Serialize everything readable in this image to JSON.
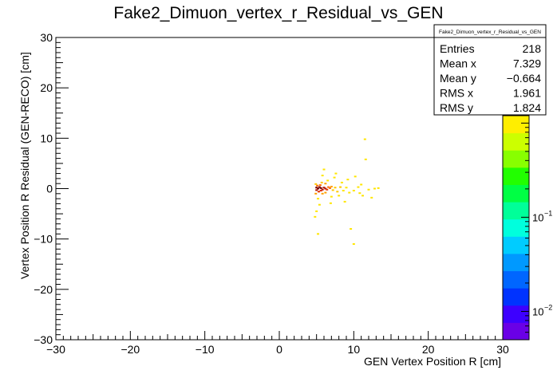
{
  "chart_data": {
    "type": "heatmap",
    "title": "Fake2_Dimuon_vertex_r_Residual_vs_GEN",
    "xlabel": "GEN Vertex Position R [cm]",
    "ylabel": "Vertex Position R Residual (GEN-RECO) [cm]",
    "xlim": [
      -30,
      30
    ],
    "ylim": [
      -30,
      30
    ],
    "x_ticks": [
      -30,
      -20,
      -10,
      0,
      10,
      20,
      30
    ],
    "y_ticks": [
      -30,
      -20,
      -10,
      0,
      10,
      20,
      30
    ],
    "x_tick_labels": [
      "−30",
      "−20",
      "−10",
      "0",
      "10",
      "20",
      "30"
    ],
    "y_tick_labels": [
      "−30",
      "−20",
      "−10",
      "0",
      "10",
      "20",
      "30"
    ],
    "grid": false,
    "colorbar": {
      "scale": "log",
      "range": [
        0.005,
        1.2
      ],
      "tick_labels": [
        {
          "value": 0.1,
          "base": "10",
          "exp": "−1"
        },
        {
          "value": 0.01,
          "base": "10",
          "exp": "−2"
        }
      ],
      "palette": [
        "#6a00e6",
        "#3d00ff",
        "#0033ff",
        "#0066ff",
        "#0099ff",
        "#00ccff",
        "#00ffdd",
        "#00ff99",
        "#00ff44",
        "#22ff00",
        "#88ff00",
        "#ccff00",
        "#ffee00"
      ]
    },
    "stats": {
      "name": "Fake2_Dimuon_vertex_r_Residual_vs_GEN",
      "rows": [
        {
          "label": "Entries",
          "value": "218"
        },
        {
          "label": "Mean x",
          "value": "7.329"
        },
        {
          "label": "Mean y",
          "value": "−0.664"
        },
        {
          "label": "RMS x",
          "value": "1.961"
        },
        {
          "label": "RMS y",
          "value": "1.824"
        }
      ]
    },
    "points": [
      [
        5.0,
        0.2,
        1.0
      ],
      [
        5.2,
        0.0,
        0.9
      ],
      [
        5.4,
        0.3,
        0.8
      ],
      [
        5.6,
        0.1,
        0.85
      ],
      [
        5.8,
        -0.2,
        0.7
      ],
      [
        6.0,
        0.2,
        0.75
      ],
      [
        6.2,
        0.0,
        0.6
      ],
      [
        5.0,
        -0.3,
        0.7
      ],
      [
        5.3,
        -0.6,
        0.5
      ],
      [
        5.6,
        -0.4,
        0.45
      ],
      [
        6.4,
        -0.2,
        0.4
      ],
      [
        6.6,
        0.3,
        0.35
      ],
      [
        6.8,
        0.1,
        0.3
      ],
      [
        5.1,
        0.6,
        0.3
      ],
      [
        5.5,
        0.7,
        0.25
      ],
      [
        4.9,
        -1.0,
        0.2
      ],
      [
        5.8,
        -1.0,
        0.2
      ],
      [
        6.2,
        -0.8,
        0.15
      ],
      [
        7.0,
        0.4,
        0.12
      ],
      [
        7.2,
        -0.3,
        0.1
      ],
      [
        7.5,
        0.2,
        0.1
      ],
      [
        7.8,
        -0.6,
        0.08
      ],
      [
        8.2,
        0.3,
        0.08
      ],
      [
        8.6,
        -0.4,
        0.06
      ],
      [
        9.0,
        0.2,
        0.06
      ],
      [
        9.4,
        -0.8,
        0.05
      ],
      [
        10.0,
        -0.4,
        0.05
      ],
      [
        10.6,
        0.3,
        0.05
      ],
      [
        11.2,
        -1.4,
        0.05
      ],
      [
        12.0,
        -0.2,
        0.05
      ],
      [
        12.8,
        0.0,
        0.05
      ],
      [
        13.3,
        0.1,
        0.05
      ],
      [
        8.4,
        1.2,
        0.05
      ],
      [
        9.2,
        1.8,
        0.05
      ],
      [
        10.2,
        2.4,
        0.05
      ],
      [
        11.0,
        0.8,
        0.05
      ],
      [
        6.5,
        1.6,
        0.06
      ],
      [
        7.4,
        2.2,
        0.05
      ],
      [
        5.8,
        2.6,
        0.05
      ],
      [
        5.2,
        -2.0,
        0.06
      ],
      [
        5.4,
        -3.2,
        0.05
      ],
      [
        5.0,
        -4.5,
        0.05
      ],
      [
        7.0,
        -1.6,
        0.06
      ],
      [
        8.0,
        -1.4,
        0.05
      ],
      [
        11.5,
        9.8,
        0.05
      ],
      [
        5.2,
        -9.0,
        0.05
      ],
      [
        10.0,
        -11.0,
        0.05
      ],
      [
        9.6,
        -8.0,
        0.05
      ],
      [
        11.6,
        5.8,
        0.05
      ],
      [
        12.4,
        -1.8,
        0.05
      ],
      [
        6.0,
        3.8,
        0.05
      ],
      [
        4.8,
        -5.6,
        0.05
      ],
      [
        8.8,
        -2.6,
        0.05
      ],
      [
        7.6,
        3.0,
        0.05
      ],
      [
        6.9,
        -2.9,
        0.05
      ],
      [
        10.8,
        -0.9,
        0.05
      ],
      [
        6.2,
        1.0,
        0.12
      ],
      [
        5.7,
        1.2,
        0.1
      ],
      [
        4.9,
        0.9,
        0.1
      ]
    ]
  }
}
